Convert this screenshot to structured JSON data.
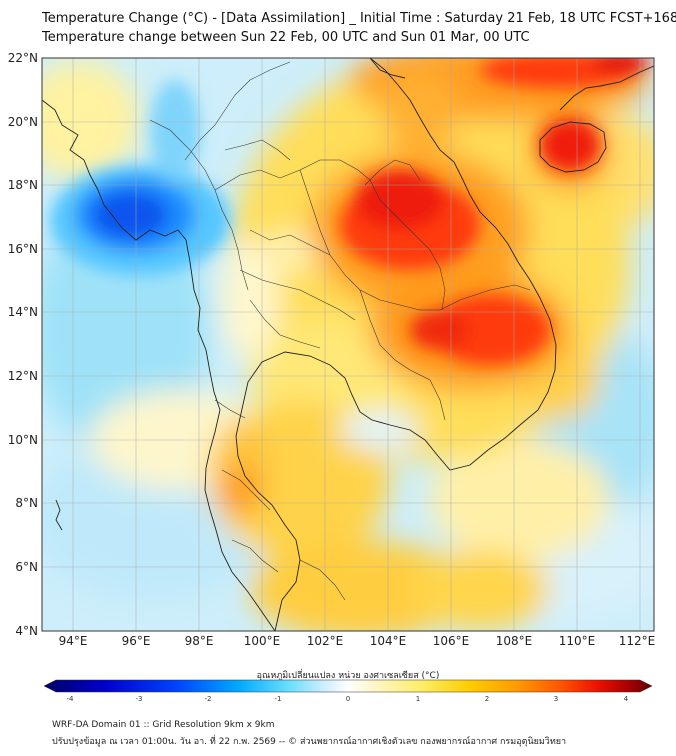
{
  "header": {
    "title_line1": "Temperature Change (°C) - [Data Assimilation] _ Initial Time : Saturday 21 Feb, 18 UTC FCST+168",
    "title_line2": "Temperature change between Sun 22 Feb, 00 UTC and Sun 01 Mar, 00 UTC"
  },
  "map": {
    "lat_labels": [
      "22°N",
      "20°N",
      "18°N",
      "16°N",
      "14°N",
      "12°N",
      "10°N",
      "8°N",
      "6°N",
      "4°N"
    ],
    "lon_labels": [
      "94°E",
      "96°E",
      "98°E",
      "100°E",
      "102°E",
      "104°E",
      "106°E",
      "108°E",
      "110°E",
      "112°E"
    ],
    "regions": [
      {
        "name": "cold-core-myanmar",
        "kind": "cold"
      },
      {
        "name": "warm-core-laos-thailand",
        "kind": "warm"
      },
      {
        "name": "warm-core-cambodia",
        "kind": "warm"
      },
      {
        "name": "warm-core-hainan",
        "kind": "warm"
      }
    ]
  },
  "colorbar": {
    "title": "อุณหภูมิเปลี่ยนแปลง หน่วย องศาเซลเซียส (°C)",
    "ticks": [
      "-4",
      "-3",
      "-2",
      "-1",
      "0",
      "1",
      "2",
      "3",
      "4"
    ],
    "colors": [
      "#000066",
      "#0000cc",
      "#0044ff",
      "#00aaff",
      "#66ddff",
      "#cceeff",
      "#ffffff",
      "#fff5c0",
      "#ffee66",
      "#ffcc00",
      "#ff9900",
      "#ff5500",
      "#ee1100",
      "#aa0000",
      "#660000"
    ]
  },
  "footer": {
    "line1": "WRF-DA Domain 01 :: Grid Resolution 9km x 9km",
    "line2": "ปรับปรุงข้อมูล ณ เวลา 01:00น. วัน อา. ที่ 22 ก.พ. 2569 -- © ส่วนพยากรณ์อากาศเชิงตัวเลข กองพยากรณ์อากาศ กรมอุตุนิยมวิทยา"
  }
}
